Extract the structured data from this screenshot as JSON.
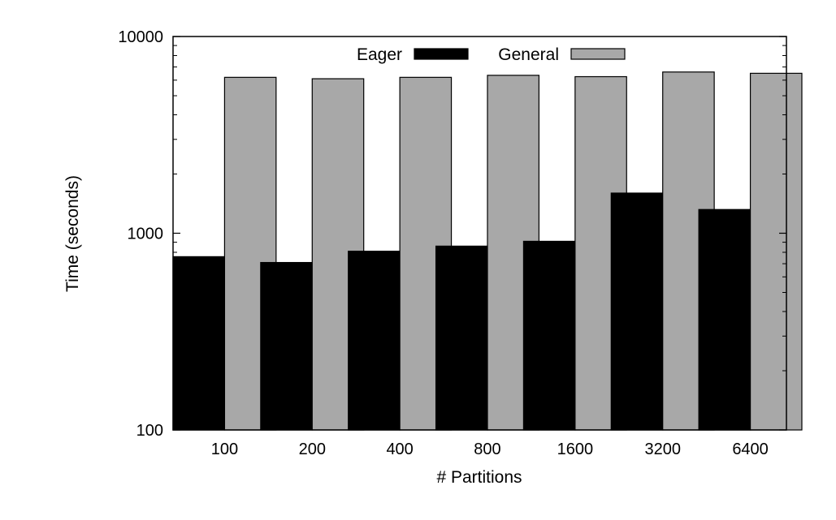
{
  "chart_data": {
    "type": "bar",
    "title": "",
    "xlabel": "# Partitions",
    "ylabel": "Time (seconds)",
    "y_scale": "log",
    "ylim": [
      100,
      10000
    ],
    "yticks": [
      100,
      1000,
      10000
    ],
    "ytick_labels": [
      "100",
      "1000",
      "10000"
    ],
    "categories": [
      "100",
      "200",
      "400",
      "800",
      "1600",
      "3200",
      "6400"
    ],
    "series": [
      {
        "name": "Eager",
        "color": "#000000",
        "values": [
          760,
          710,
          810,
          860,
          910,
          1600,
          1320
        ]
      },
      {
        "name": "General",
        "color": "#a8a8a8",
        "values": [
          6200,
          6100,
          6200,
          6350,
          6250,
          6600,
          6500
        ]
      }
    ],
    "legend_position": "top-center",
    "grid": false
  }
}
